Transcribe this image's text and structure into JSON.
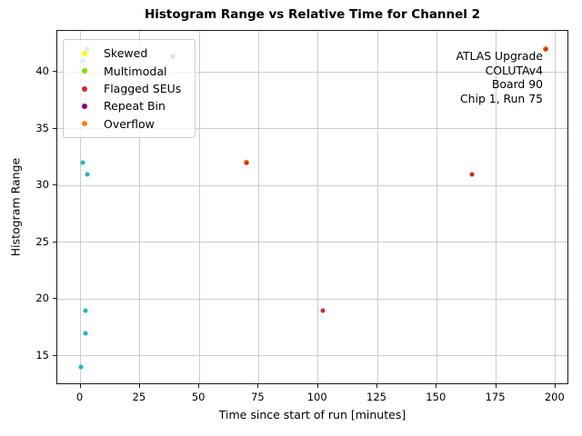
{
  "chart_data": {
    "type": "scatter",
    "title": "Histogram Range vs Relative Time for Channel 2",
    "xlabel": "Time since start of run [minutes]",
    "ylabel": "Histogram Range",
    "xlim": [
      -9.8,
      205.8
    ],
    "ylim": [
      12.4,
      43.6
    ],
    "xticks": [
      0,
      25,
      50,
      75,
      100,
      125,
      150,
      175,
      200
    ],
    "yticks": [
      15,
      20,
      25,
      30,
      35,
      40
    ],
    "grid": true,
    "legend_position": "upper left",
    "legend_entries": [
      {
        "label": "Skewed",
        "color": "#ffff00"
      },
      {
        "label": "Multimodal",
        "color": "#7fe000"
      },
      {
        "label": "Flagged SEUs",
        "color": "#d62728"
      },
      {
        "label": "Repeat Bin",
        "color": "#800080"
      },
      {
        "label": "Overflow",
        "color": "#ff7f0e"
      }
    ],
    "series": [
      {
        "name": "Unflagged",
        "color": "#14b9c4",
        "in_legend": false,
        "marker_px": 5,
        "points": [
          {
            "x": 3,
            "y": 42
          },
          {
            "x": 1,
            "y": 41
          },
          {
            "x": 1,
            "y": 32
          },
          {
            "x": 3,
            "y": 31
          },
          {
            "x": 2,
            "y": 19
          },
          {
            "x": 2,
            "y": 17
          },
          {
            "x": 0,
            "y": 14
          }
        ]
      },
      {
        "name": "Skewed",
        "color": "#ffff00",
        "in_legend": true,
        "marker_px": 5,
        "points": []
      },
      {
        "name": "Multimodal",
        "color": "#7fe000",
        "in_legend": true,
        "marker_px": 5,
        "points": []
      },
      {
        "name": "Repeat Bin",
        "color": "#800080",
        "in_legend": true,
        "marker_px": 5,
        "points": []
      },
      {
        "name": "Overflow",
        "color": "#ff7f0e",
        "in_legend": true,
        "marker_px": 6,
        "points": [
          {
            "x": 70,
            "y": 32
          },
          {
            "x": 196,
            "y": 42
          }
        ]
      },
      {
        "name": "Flagged SEUs",
        "color": "#d62728",
        "in_legend": true,
        "marker_px": 5,
        "points": [
          {
            "x": 39,
            "y": 41.4
          },
          {
            "x": 70,
            "y": 32,
            "size": 3.6
          },
          {
            "x": 102,
            "y": 19
          },
          {
            "x": 165,
            "y": 31
          },
          {
            "x": 196,
            "y": 42,
            "size": 3.6
          }
        ]
      }
    ],
    "annotation_lines": [
      "ATLAS Upgrade",
      "COLUTAv4",
      "Board 90",
      "Chip 1, Run 75"
    ]
  }
}
